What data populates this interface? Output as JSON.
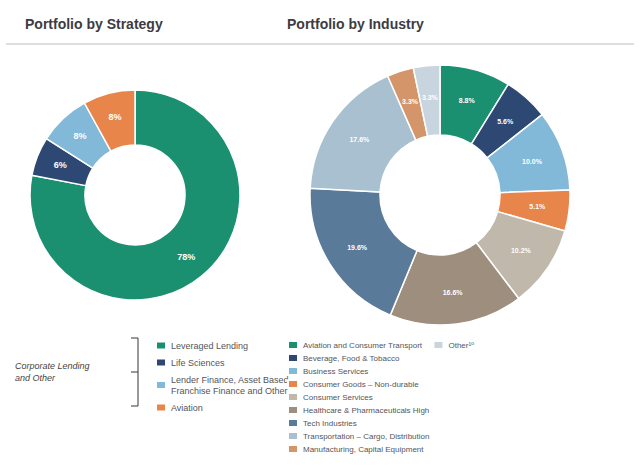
{
  "chart_data": [
    {
      "type": "pie",
      "title": "Portfolio by Strategy",
      "categories": [
        "Leveraged Lending",
        "Life Sciences",
        "Lender Finance, Asset Based,\nFranchise Finance and Other",
        "Aviation"
      ],
      "values": [
        78,
        6,
        8,
        8
      ],
      "value_labels": [
        "78%",
        "6%",
        "8%",
        "8%"
      ],
      "data_labels": true,
      "colors": [
        "#1a9070",
        "#2d4872",
        "#82b8d8",
        "#e8854a"
      ],
      "legend": "bottom",
      "annotations": [
        "Corporate Lending\nand Other"
      ]
    },
    {
      "type": "pie",
      "title": "Portfolio by Industry",
      "categories": [
        "Aviation and Consumer Transport",
        "Beverage, Food & Tobacco",
        "Business Services",
        "Consumer Goods – Non-durable",
        "Consumer Services",
        "Healthcare & Pharmaceuticals High",
        "Tech Industries",
        "Transportation – Cargo, Distribution",
        "Manufacturing, Capital Equipment",
        "Other¹⁰"
      ],
      "values": [
        8.8,
        5.6,
        10.0,
        5.1,
        10.2,
        16.6,
        19.6,
        17.6,
        3.3,
        3.3
      ],
      "value_labels": [
        "8.8%",
        "5.6%",
        "10.0%",
        "5.1%",
        "10.2%",
        "16.6%",
        "19.6%",
        "17.6%",
        "3.3%",
        "3.3%"
      ],
      "data_labels": true,
      "colors": [
        "#1a9070",
        "#2d4872",
        "#82b8d8",
        "#e8854a",
        "#c0b8aa",
        "#9e8e7e",
        "#5a7a9a",
        "#a8c0d0",
        "#d4956a",
        "#c8d4de"
      ],
      "legend": "bottom"
    }
  ]
}
